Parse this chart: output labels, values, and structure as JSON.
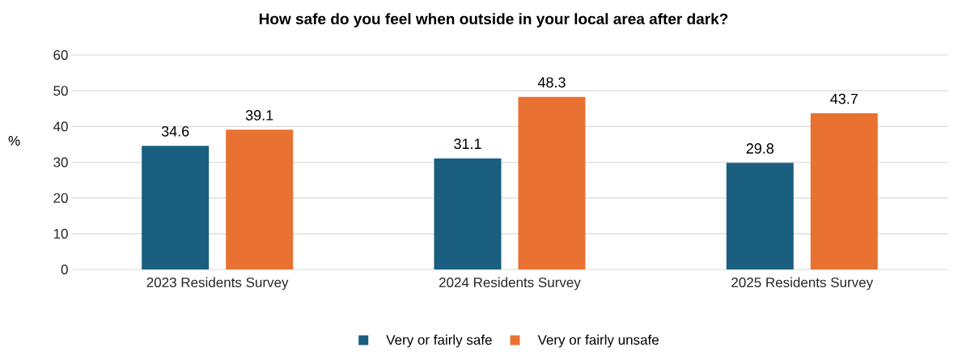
{
  "chart_data": {
    "type": "bar",
    "title": "How safe do you feel when outside in your local area after dark?",
    "ylabel": "%",
    "categories": [
      "2023 Residents Survey",
      "2024 Residents Survey",
      "2025 Residents Survey"
    ],
    "series": [
      {
        "name": "Very or fairly safe",
        "color": "#1a5e80",
        "values": [
          34.6,
          31.1,
          29.8
        ]
      },
      {
        "name": "Very or fairly unsafe",
        "color": "#e97132",
        "values": [
          39.1,
          48.3,
          43.7
        ]
      }
    ],
    "ylim": [
      0,
      60
    ],
    "yticks": [
      0,
      10,
      20,
      30,
      40,
      50,
      60
    ],
    "grid": "y",
    "legend": "bottom",
    "data_labels": true
  }
}
